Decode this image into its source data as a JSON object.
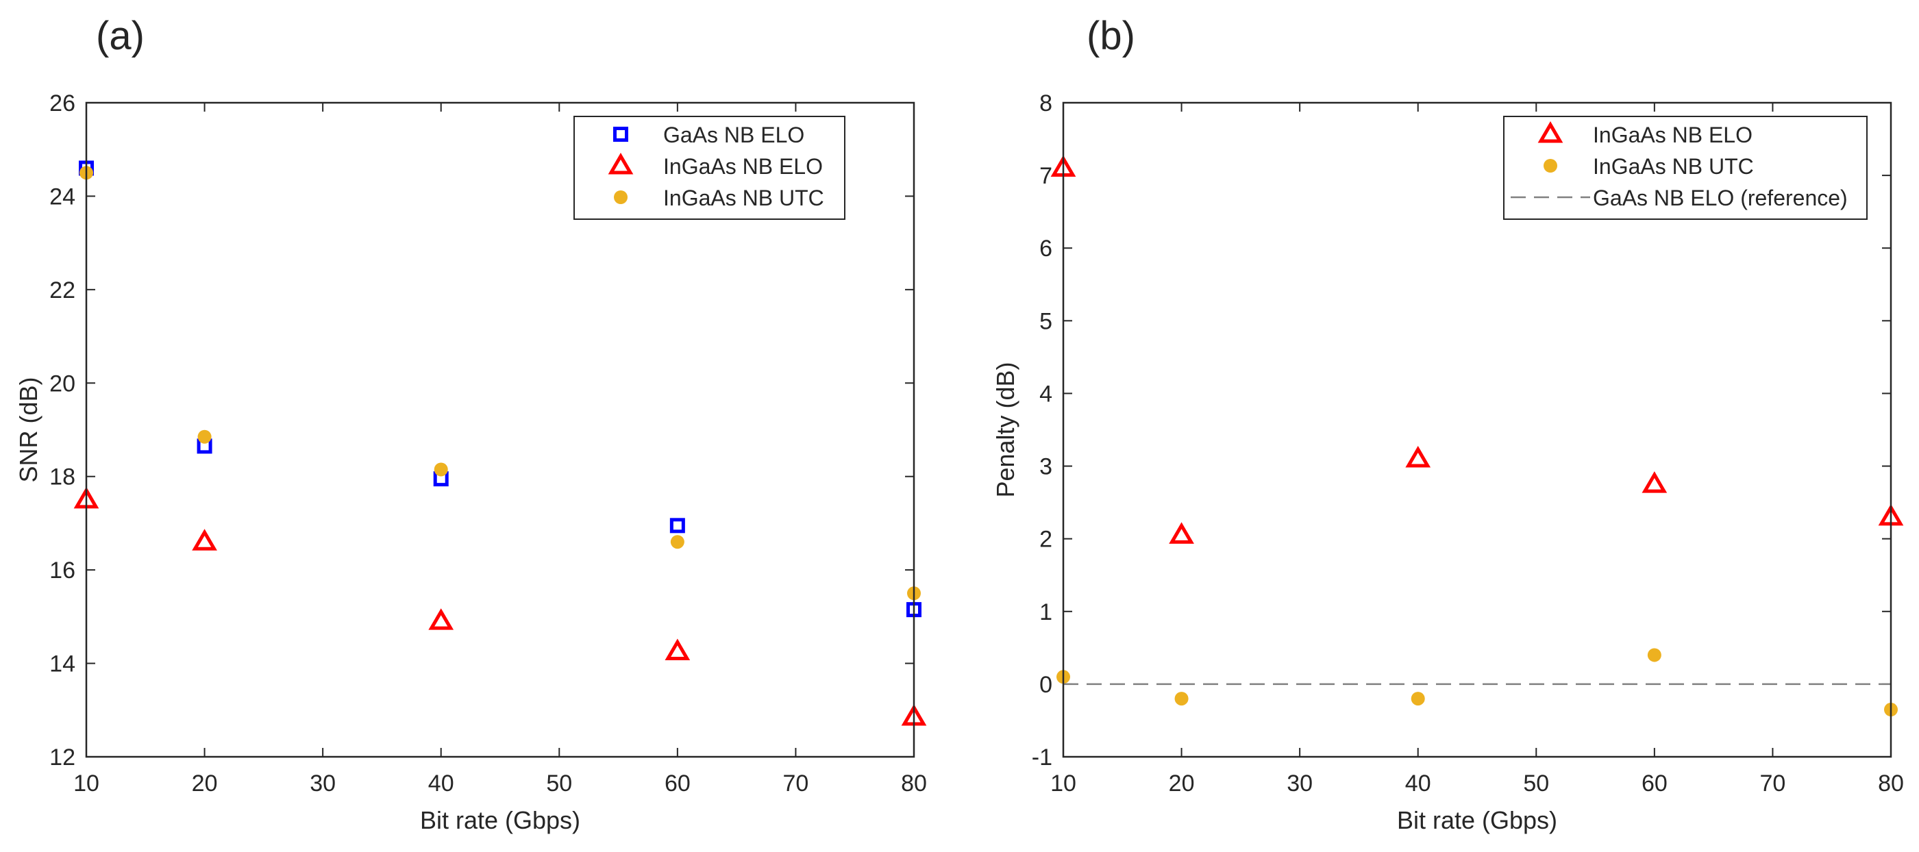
{
  "chart_data": [
    {
      "type": "scatter",
      "panel_label": "(a)",
      "xlabel": "Bit rate (Gbps)",
      "ylabel": "SNR (dB)",
      "xlim": [
        10,
        80
      ],
      "ylim": [
        12,
        26
      ],
      "xticks": [
        10,
        20,
        30,
        40,
        50,
        60,
        70,
        80
      ],
      "yticks": [
        12,
        14,
        16,
        18,
        20,
        22,
        24,
        26
      ],
      "legend_position": "top-right",
      "series": [
        {
          "name": "GaAs NB ELO",
          "marker": "square",
          "color": "#0000ff",
          "x": [
            10,
            20,
            40,
            60,
            80
          ],
          "y": [
            24.6,
            18.65,
            17.95,
            16.95,
            15.15
          ]
        },
        {
          "name": "InGaAs NB ELO",
          "marker": "triangle",
          "color": "#ff0000",
          "x": [
            10,
            20,
            40,
            60,
            80
          ],
          "y": [
            17.5,
            16.6,
            14.9,
            14.25,
            12.85
          ]
        },
        {
          "name": "InGaAs NB UTC",
          "marker": "circle",
          "color": "#edb120",
          "x": [
            10,
            20,
            40,
            60,
            80
          ],
          "y": [
            24.5,
            18.85,
            18.15,
            16.6,
            15.5
          ]
        }
      ]
    },
    {
      "type": "scatter",
      "panel_label": "(b)",
      "xlabel": "Bit rate (Gbps)",
      "ylabel": "Penalty (dB)",
      "xlim": [
        10,
        80
      ],
      "ylim": [
        -1,
        8
      ],
      "xticks": [
        10,
        20,
        30,
        40,
        50,
        60,
        70,
        80
      ],
      "yticks": [
        -1,
        0,
        1,
        2,
        3,
        4,
        5,
        6,
        7,
        8
      ],
      "legend_position": "top-right",
      "series": [
        {
          "name": "InGaAs NB ELO",
          "marker": "triangle",
          "color": "#ff0000",
          "x": [
            10,
            20,
            40,
            60,
            80
          ],
          "y": [
            7.1,
            2.05,
            3.1,
            2.75,
            2.3
          ]
        },
        {
          "name": "InGaAs NB UTC",
          "marker": "circle",
          "color": "#edb120",
          "x": [
            10,
            20,
            40,
            60,
            80
          ],
          "y": [
            0.1,
            -0.2,
            -0.2,
            0.4,
            -0.35
          ]
        },
        {
          "name": "GaAs NB ELO (reference)",
          "marker": "dashed-line",
          "color": "#808080",
          "x": [
            10,
            80
          ],
          "y": [
            0,
            0
          ]
        }
      ]
    }
  ]
}
